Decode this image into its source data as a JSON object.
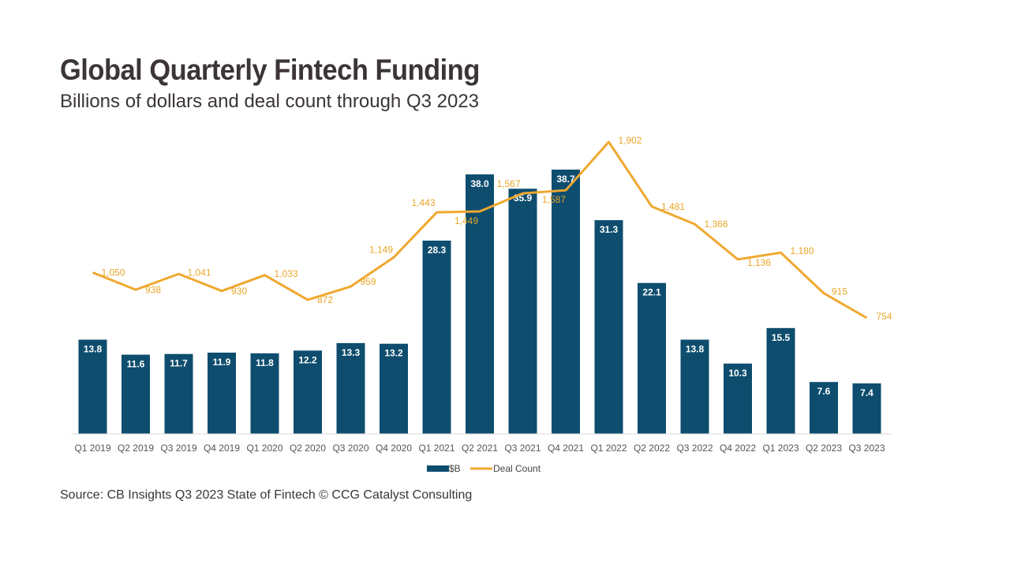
{
  "header": {
    "title": "Global Quarterly Fintech Funding",
    "subtitle": "Billions of dollars and deal count through Q3 2023"
  },
  "footer": {
    "source": "Source: CB Insights Q3 2023 State of Fintech © CCG Catalyst Consulting"
  },
  "colors": {
    "bar": "#0e4d6e",
    "line": "#f0a830",
    "axis": "#d9d9d9"
  },
  "chart_data": {
    "type": "bar",
    "title": "Global Quarterly Fintech Funding",
    "subtitle": "Billions of dollars and deal count through Q3 2023",
    "categories": [
      "Q1 2019",
      "Q2 2019",
      "Q3 2019",
      "Q4 2019",
      "Q1 2020",
      "Q2 2020",
      "Q3 2020",
      "Q4 2020",
      "Q1 2021",
      "Q2 2021",
      "Q3 2021",
      "Q4 2021",
      "Q1 2022",
      "Q2 2022",
      "Q3 2022",
      "Q4 2022",
      "Q1 2023",
      "Q2 2023",
      "Q3 2023"
    ],
    "series": [
      {
        "name": "$B",
        "type": "bar",
        "values": [
          13.8,
          11.6,
          11.7,
          11.9,
          11.8,
          12.2,
          13.3,
          13.2,
          28.3,
          38.0,
          35.9,
          38.7,
          31.3,
          22.1,
          13.8,
          10.3,
          15.5,
          7.6,
          7.4
        ],
        "labels": [
          "13.8",
          "11.6",
          "11.7",
          "11.9",
          "11.8",
          "12.2",
          "13.3",
          "13.2",
          "28.3",
          "38.0",
          "35.9",
          "38.7",
          "31.3",
          "22.1",
          "13.8",
          "10.3",
          "15.5",
          "7.6",
          "7.4"
        ]
      },
      {
        "name": "Deal Count",
        "type": "line",
        "values": [
          1050,
          938,
          1041,
          930,
          1033,
          872,
          959,
          1149,
          1443,
          1449,
          1567,
          1587,
          1902,
          1481,
          1366,
          1136,
          1180,
          915,
          754
        ],
        "labels": [
          "1,050",
          "938",
          "1,041",
          "930",
          "1,033",
          "872",
          "959",
          "1,149",
          "1,443",
          "1,449",
          "1,567",
          "1,587",
          "1,902",
          "1,481",
          "1,366",
          "1,136",
          "1,180",
          "915",
          "754"
        ]
      }
    ],
    "legend": {
      "position": "bottom",
      "entries": [
        "$B",
        "Deal Count"
      ]
    },
    "grid": false
  }
}
